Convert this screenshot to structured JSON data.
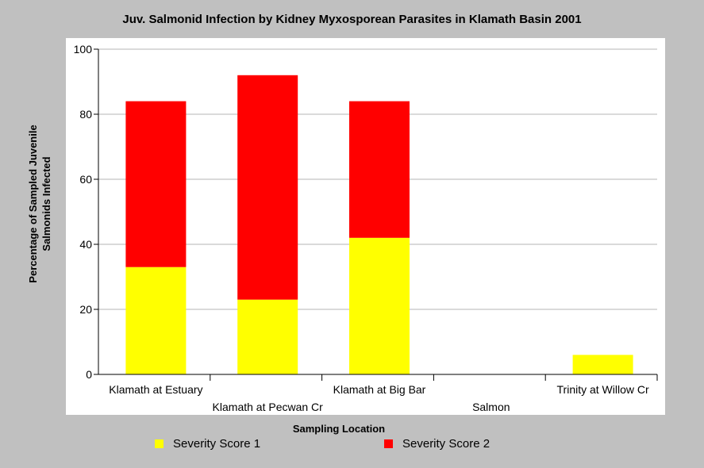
{
  "chart_data": {
    "type": "bar",
    "stacked": true,
    "title": "Juv. Salmonid Infection by Kidney Myxosporean Parasites in Klamath Basin 2001",
    "xlabel": "Sampling Location",
    "ylabel": [
      "Percentage of Sampled Juvenile",
      "Salmonids Infected"
    ],
    "categories": [
      "Klamath at Estuary",
      "Klamath at  Pecwan Cr",
      "Klamath at  Big Bar",
      "Salmon",
      "Trinity at Willow Cr"
    ],
    "series": [
      {
        "name": "Severity Score 1",
        "color": "#ffff00",
        "values": [
          33,
          23,
          42,
          0,
          6
        ]
      },
      {
        "name": "Severity Score 2",
        "color": "#ff0000",
        "values": [
          51,
          69,
          42,
          0,
          0
        ]
      }
    ],
    "ylim": [
      0,
      100
    ],
    "yticks": [
      0,
      20,
      40,
      60,
      80,
      100
    ],
    "grid": true,
    "legend_position": "bottom"
  }
}
